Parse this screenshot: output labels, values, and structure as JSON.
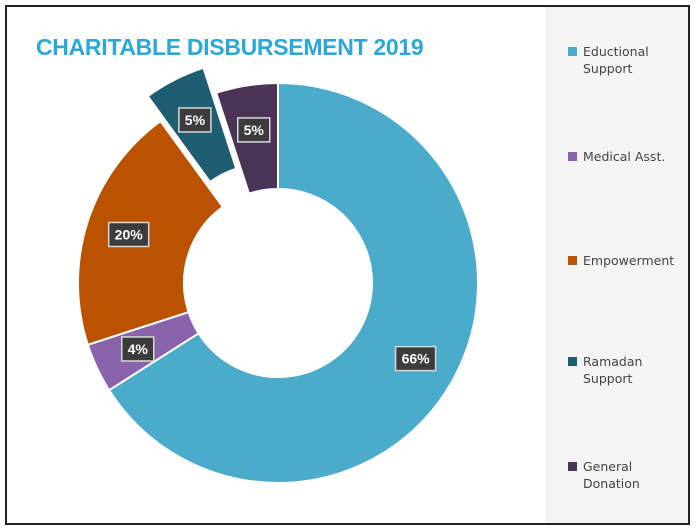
{
  "chart_data": {
    "type": "pie",
    "variant": "donut",
    "title": "CHARITABLE DISBURSEMENT 2019",
    "legend_position": "right",
    "slices": [
      {
        "label": "Eductional Support",
        "display_label": "Eductional\nSupport",
        "value": 66,
        "value_label": "66%",
        "color": "#4aabcb",
        "exploded": false
      },
      {
        "label": "Medical Asst.",
        "display_label": "Medical Asst.",
        "value": 4,
        "value_label": "4%",
        "color": "#8a63ad",
        "exploded": false
      },
      {
        "label": "Empowerment",
        "display_label": "Empowerment",
        "value": 20,
        "value_label": "20%",
        "color": "#bb5200",
        "exploded": false
      },
      {
        "label": "Ramadan Support",
        "display_label": "Ramadan\nSupport",
        "value": 5,
        "value_label": "5%",
        "color": "#1f5e72",
        "exploded": true
      },
      {
        "label": "General Donation",
        "display_label": "General\nDonation",
        "value": 5,
        "value_label": "5%",
        "color": "#4a3557",
        "exploded": false
      }
    ]
  }
}
